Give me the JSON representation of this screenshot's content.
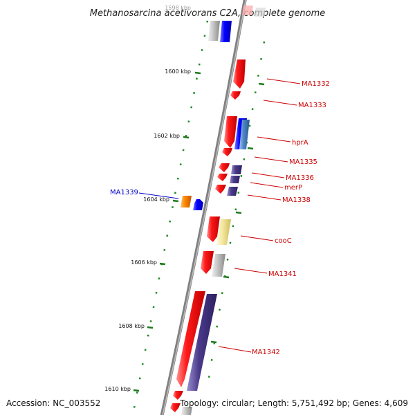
{
  "title": "Methanosarcina acetivorans C2A, complete genome",
  "footer": {
    "accession": "Accession: NC_003552",
    "topology": "Topology: circular; Length: 5,751,492 bp; Genes: 4,609"
  },
  "ticks": [
    "1598 kbp",
    "1600 kbp",
    "1602 kbp",
    "1604 kbp",
    "1606 kbp",
    "1608 kbp",
    "1610 kbp"
  ],
  "genes": {
    "ma1332": "MA1332",
    "ma1333": "MA1333",
    "hpra": "hprA",
    "ma1335": "MA1335",
    "ma1336": "MA1336",
    "merp": "merP",
    "ma1338": "MA1338",
    "ma1339": "MA1339",
    "cooc": "cooC",
    "ma1341": "MA1341",
    "ma1342": "MA1342"
  },
  "colors": {
    "backbone": "#888888",
    "tick": "#1e7a1e",
    "label_red": "#cc0000",
    "label_blue": "#0000cc",
    "gene_red": "#e00000",
    "gene_blue": "#0000ee",
    "gene_purple": "#4a3a8a",
    "gene_gray": "#b8b8b8",
    "gene_yellow": "#f2e49a",
    "gene_orange": "#ee7700",
    "gene_steel": "#4f86c6"
  }
}
